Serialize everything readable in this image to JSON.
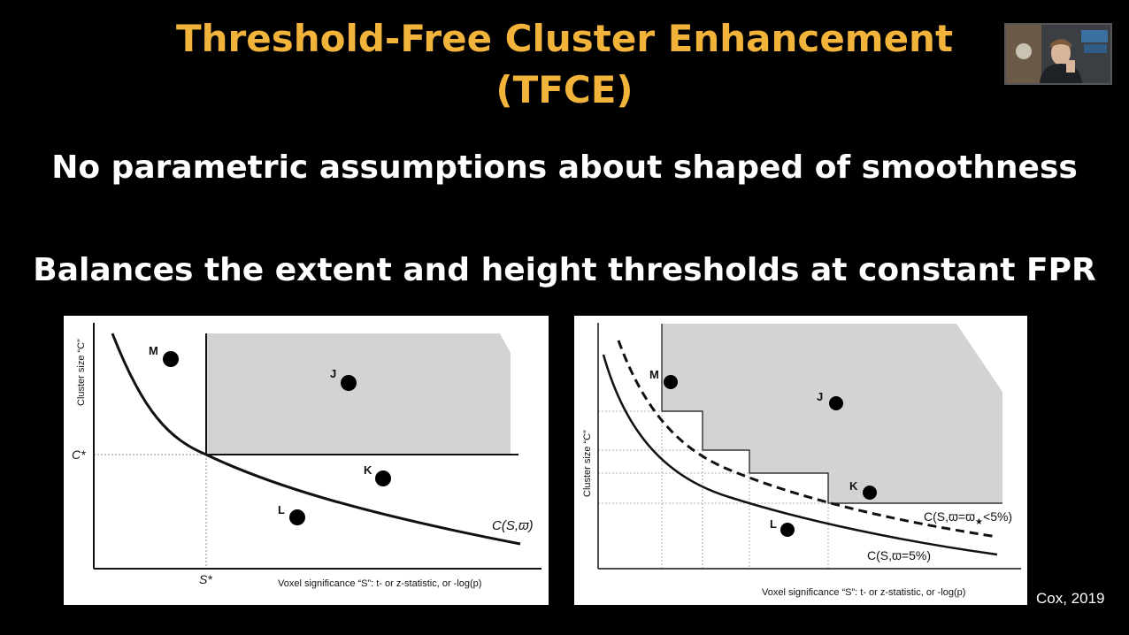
{
  "slide": {
    "title_line1": "Threshold-Free Cluster Enhancement",
    "title_line2": "(TFCE)",
    "bullet1": "No parametric assumptions about shaped of smoothness",
    "bullet2": "Balances the extent and height thresholds at constant FPR",
    "citation": "Cox, 2019"
  },
  "left_figure": {
    "y_axis_label": "Cluster size “C”",
    "x_axis_label": "Voxel significance “S”: t- or z-statistic, or -log(p)",
    "c_star": "C*",
    "s_star": "S*",
    "curve_label": "C(S,ϖ)",
    "points": {
      "M": "M",
      "J": "J",
      "K": "K",
      "L": "L"
    }
  },
  "right_figure": {
    "y_axis_label": "Cluster size “C”",
    "x_axis_label": "Voxel significance “S”: t- or z-statistic, or -log(p)",
    "dashed_curve_label_prefix": "C(S,ϖ=ϖ",
    "dashed_curve_label_sub": "★",
    "dashed_curve_label_suffix": "<5%)",
    "solid_curve_label": "C(S,ϖ=5%)",
    "points": {
      "M": "M",
      "J": "J",
      "K": "K",
      "L": "L"
    }
  },
  "colors": {
    "title": "#f2b33a",
    "region": "#d3d3d3",
    "background": "#000000"
  },
  "webcam": {
    "icon": "presenter-video-icon"
  }
}
